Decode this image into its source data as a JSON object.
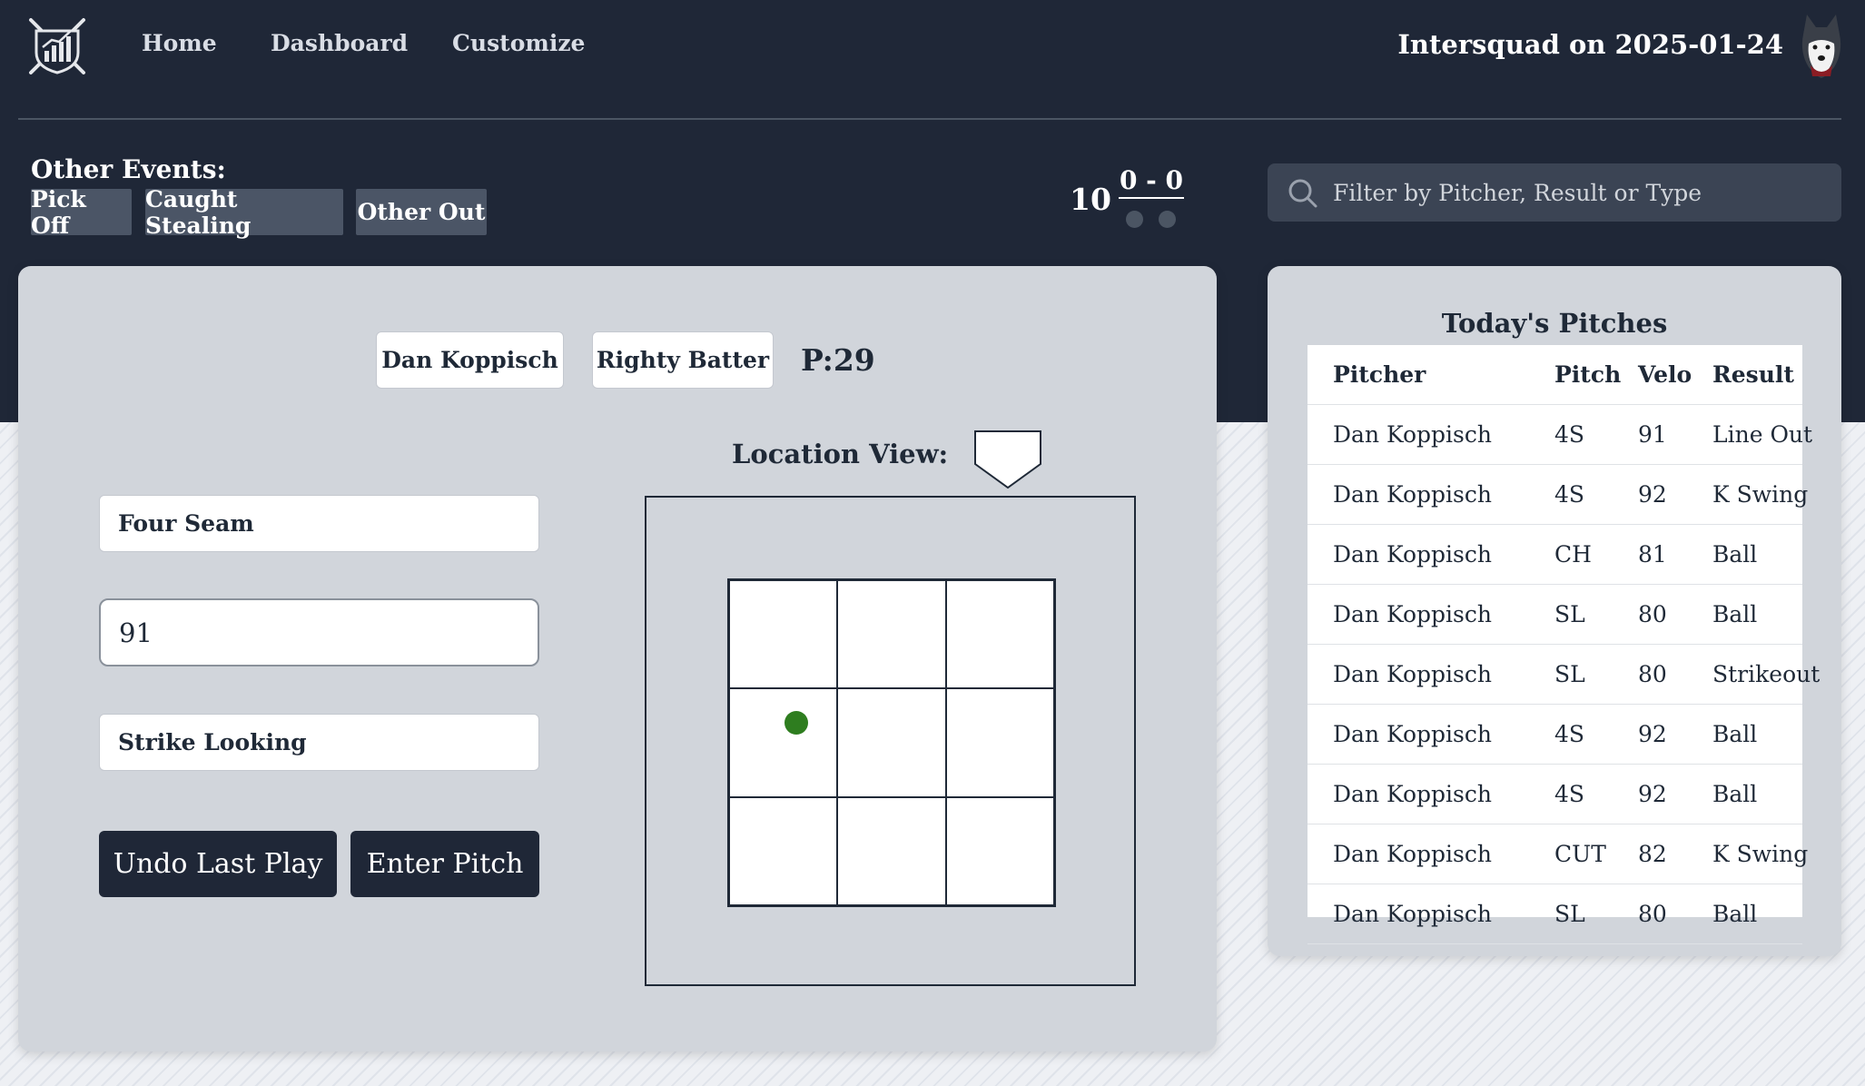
{
  "nav": {
    "links": [
      "Home",
      "Dashboard",
      "Customize"
    ],
    "title": "Intersquad on 2025-01-24"
  },
  "other_events": {
    "label": "Other Events:",
    "buttons": [
      "Pick Off",
      "Caught Stealing",
      "Other Out"
    ]
  },
  "scoreboard": {
    "inning": "10",
    "count": "0 - 0",
    "outs": 0,
    "outs_max": 2
  },
  "search": {
    "placeholder": "Filter by Pitcher, Result or Type"
  },
  "entry": {
    "pitcher": "Dan Koppisch",
    "batter": "Righty Batter",
    "pitch_count": "P:29",
    "pitch_type": "Four Seam",
    "velocity": "91",
    "result": "Strike Looking",
    "undo_label": "Undo Last Play",
    "enter_label": "Enter Pitch"
  },
  "location": {
    "label": "Location View:",
    "pitch_cell": {
      "row": 1,
      "col": 0
    }
  },
  "pitches": {
    "title": "Today's Pitches",
    "columns": [
      "Pitcher",
      "Pitch",
      "Velo",
      "Result"
    ],
    "rows": [
      [
        "Dan Koppisch",
        "4S",
        "91",
        "Line Out"
      ],
      [
        "Dan Koppisch",
        "4S",
        "92",
        "K Swing"
      ],
      [
        "Dan Koppisch",
        "CH",
        "81",
        "Ball"
      ],
      [
        "Dan Koppisch",
        "SL",
        "80",
        "Ball"
      ],
      [
        "Dan Koppisch",
        "SL",
        "80",
        "Strikeout"
      ],
      [
        "Dan Koppisch",
        "4S",
        "92",
        "Ball"
      ],
      [
        "Dan Koppisch",
        "4S",
        "92",
        "Ball"
      ],
      [
        "Dan Koppisch",
        "CUT",
        "82",
        "K Swing"
      ],
      [
        "Dan Koppisch",
        "SL",
        "80",
        "Ball"
      ]
    ]
  },
  "colors": {
    "navy": "#1f2737",
    "card": "#d1d5db",
    "pitch_dot": "#2e7d1f"
  },
  "icons": [
    "logo-icon",
    "mascot-icon",
    "search-icon",
    "home-plate-icon"
  ]
}
